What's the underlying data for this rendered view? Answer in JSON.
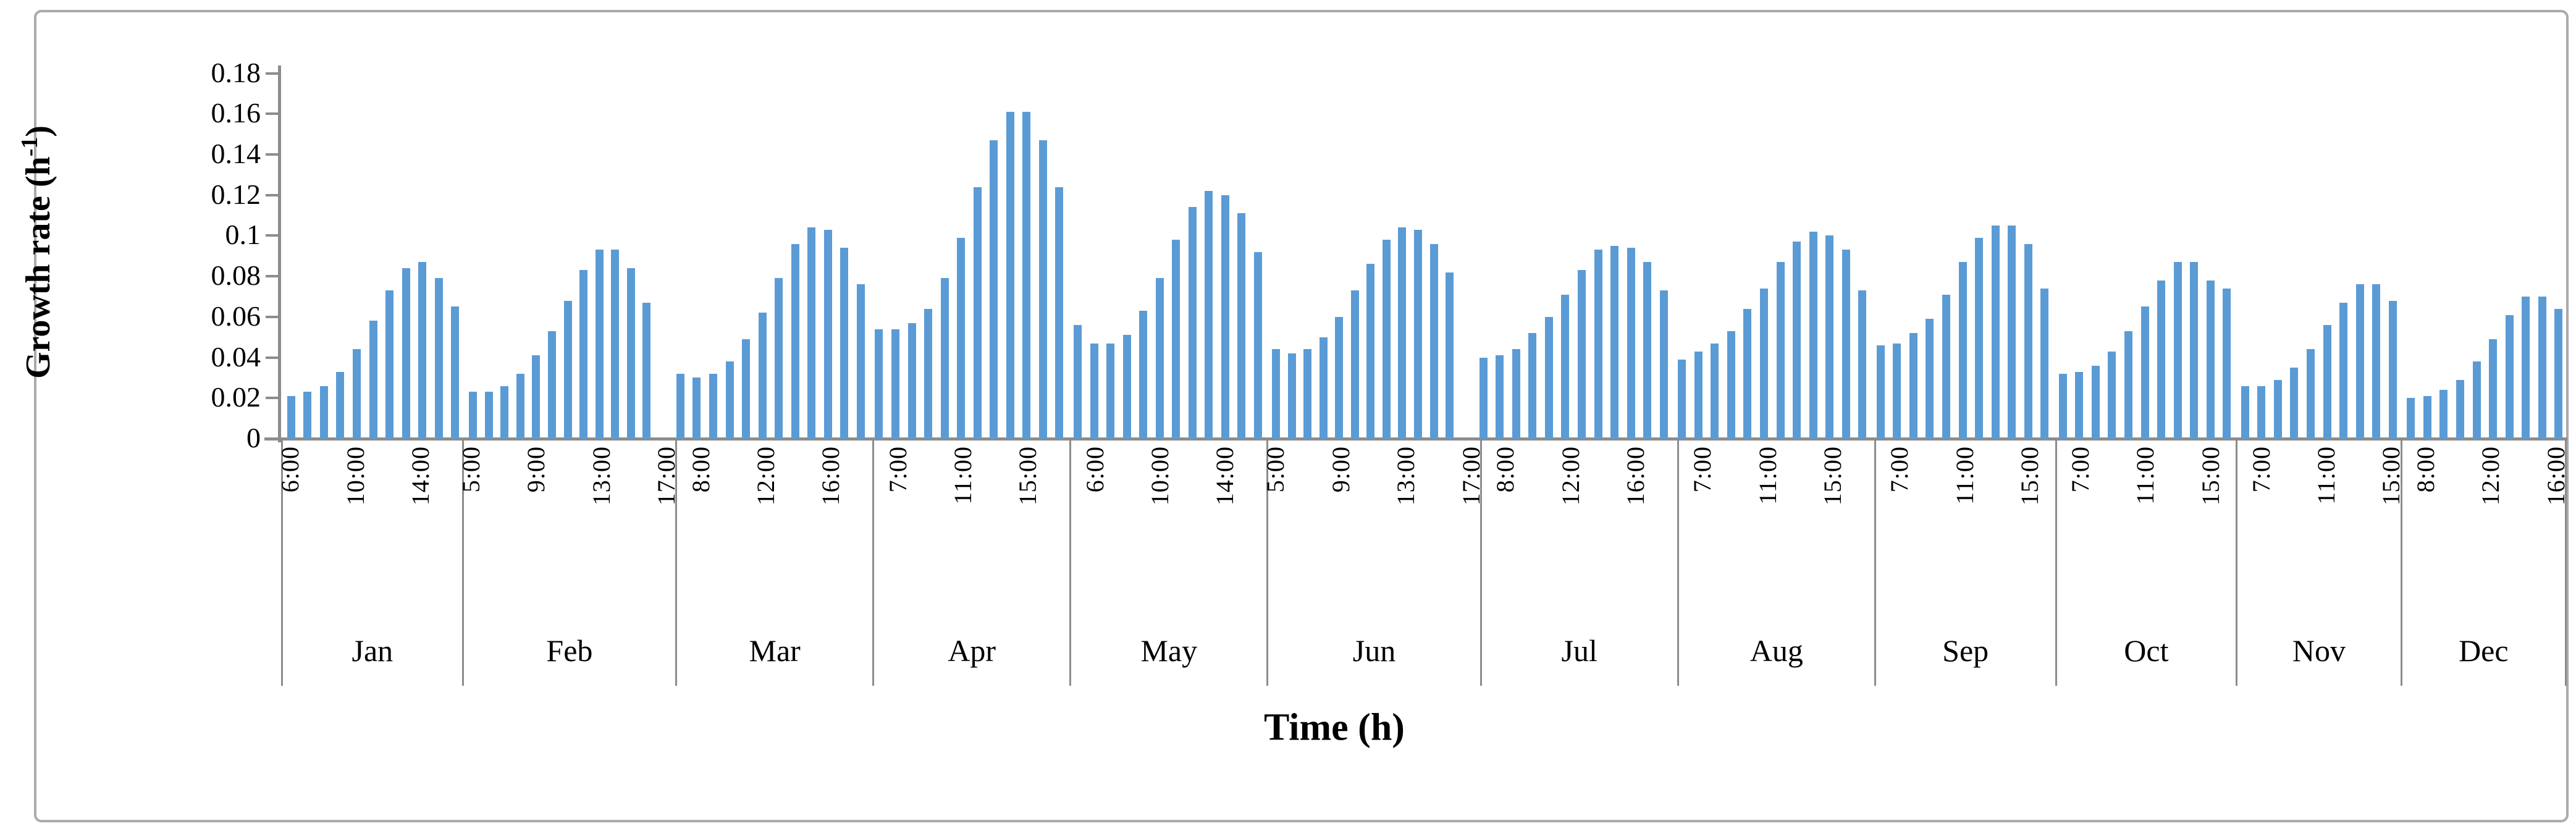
{
  "figure": {
    "bar_color": "#5B9BD5",
    "axis_color": "#8C8C8C",
    "frame_color": "#ABABAB",
    "background": "#ffffff"
  },
  "chart_data": {
    "type": "bar",
    "title": "",
    "xlabel": "Time (h)",
    "ylabel": "Growth rate (h⁻¹)",
    "ylabel_parts": {
      "prefix": "Growth rate (h",
      "sup": "-1",
      "suffix": ")"
    },
    "ylim": [
      0,
      0.18
    ],
    "grid": false,
    "legend": "none",
    "yticks": [
      {
        "label": "0.18",
        "value": 0.18
      },
      {
        "label": "0.16",
        "value": 0.16
      },
      {
        "label": "0.14",
        "value": 0.14
      },
      {
        "label": "0.12",
        "value": 0.12
      },
      {
        "label": "0.1",
        "value": 0.1
      },
      {
        "label": "0.08",
        "value": 0.08
      },
      {
        "label": "0.06",
        "value": 0.06
      },
      {
        "label": "0.04",
        "value": 0.04
      },
      {
        "label": "0.02",
        "value": 0.02
      },
      {
        "label": "0",
        "value": 0
      }
    ],
    "months": [
      {
        "name": "Jan",
        "slots": 11,
        "hour_labels": [
          {
            "text": "6:00",
            "slot": 0
          },
          {
            "text": "10:00",
            "slot": 4
          },
          {
            "text": "14:00",
            "slot": 8
          }
        ],
        "values": [
          0.021,
          0.023,
          0.026,
          0.033,
          0.044,
          0.058,
          0.073,
          0.084,
          0.087,
          0.079,
          0.065
        ]
      },
      {
        "name": "Feb",
        "slots": 13,
        "hour_labels": [
          {
            "text": "5:00",
            "slot": 0
          },
          {
            "text": "9:00",
            "slot": 4
          },
          {
            "text": "13:00",
            "slot": 8
          },
          {
            "text": "17:00",
            "slot": 12
          }
        ],
        "values": [
          0.023,
          0.023,
          0.026,
          0.032,
          0.041,
          0.053,
          0.068,
          0.083,
          0.093,
          0.093,
          0.084,
          0.067,
          null
        ]
      },
      {
        "name": "Mar",
        "slots": 12,
        "hour_labels": [
          {
            "text": "8:00",
            "slot": 1
          },
          {
            "text": "12:00",
            "slot": 5
          },
          {
            "text": "16:00",
            "slot": 9
          }
        ],
        "values": [
          0.032,
          0.03,
          0.032,
          0.038,
          0.049,
          0.062,
          0.079,
          0.096,
          0.104,
          0.103,
          0.094,
          0.076
        ]
      },
      {
        "name": "Apr",
        "slots": 12,
        "hour_labels": [
          {
            "text": "7:00",
            "slot": 1
          },
          {
            "text": "11:00",
            "slot": 5
          },
          {
            "text": "15:00",
            "slot": 9
          }
        ],
        "values": [
          0.054,
          0.054,
          0.057,
          0.064,
          0.079,
          0.099,
          0.124,
          0.147,
          0.161,
          0.161,
          0.147,
          0.124
        ]
      },
      {
        "name": "May",
        "slots": 12,
        "hour_labels": [
          {
            "text": "6:00",
            "slot": 1
          },
          {
            "text": "10:00",
            "slot": 5
          },
          {
            "text": "14:00",
            "slot": 9
          }
        ],
        "values": [
          0.056,
          0.047,
          0.047,
          0.051,
          0.063,
          0.079,
          0.098,
          0.114,
          0.122,
          0.12,
          0.111,
          0.092
        ]
      },
      {
        "name": "Jun",
        "slots": 13,
        "hour_labels": [
          {
            "text": "5:00",
            "slot": 0
          },
          {
            "text": "9:00",
            "slot": 4
          },
          {
            "text": "13:00",
            "slot": 8
          },
          {
            "text": "17:00",
            "slot": 12
          }
        ],
        "values": [
          0.044,
          0.042,
          0.044,
          0.05,
          0.06,
          0.073,
          0.086,
          0.098,
          0.104,
          0.103,
          0.096,
          0.082,
          null
        ]
      },
      {
        "name": "Jul",
        "slots": 12,
        "hour_labels": [
          {
            "text": "8:00",
            "slot": 1
          },
          {
            "text": "12:00",
            "slot": 5
          },
          {
            "text": "16:00",
            "slot": 9
          }
        ],
        "values": [
          0.04,
          0.041,
          0.044,
          0.052,
          0.06,
          0.071,
          0.083,
          0.093,
          0.095,
          0.094,
          0.087,
          0.073
        ]
      },
      {
        "name": "Aug",
        "slots": 12,
        "hour_labels": [
          {
            "text": "7:00",
            "slot": 1
          },
          {
            "text": "11:00",
            "slot": 5
          },
          {
            "text": "15:00",
            "slot": 9
          }
        ],
        "values": [
          0.039,
          0.043,
          0.047,
          0.053,
          0.064,
          0.074,
          0.087,
          0.097,
          0.102,
          0.1,
          0.093,
          0.073
        ]
      },
      {
        "name": "Sep",
        "slots": 11,
        "hour_labels": [
          {
            "text": "7:00",
            "slot": 1
          },
          {
            "text": "11:00",
            "slot": 5
          },
          {
            "text": "15:00",
            "slot": 9
          }
        ],
        "values": [
          0.046,
          0.047,
          0.052,
          0.059,
          0.071,
          0.087,
          0.099,
          0.105,
          0.105,
          0.096,
          0.074
        ]
      },
      {
        "name": "Oct",
        "slots": 11,
        "hour_labels": [
          {
            "text": "7:00",
            "slot": 1
          },
          {
            "text": "11:00",
            "slot": 5
          },
          {
            "text": "15:00",
            "slot": 9
          }
        ],
        "values": [
          0.032,
          0.033,
          0.036,
          0.043,
          0.053,
          0.065,
          0.078,
          0.087,
          0.087,
          0.078,
          0.074
        ]
      },
      {
        "name": "Nov",
        "slots": 10,
        "hour_labels": [
          {
            "text": "7:00",
            "slot": 1
          },
          {
            "text": "11:00",
            "slot": 5
          },
          {
            "text": "15:00",
            "slot": 9
          }
        ],
        "values": [
          0.026,
          0.026,
          0.029,
          0.035,
          0.044,
          0.056,
          0.067,
          0.076,
          0.076,
          0.068
        ]
      },
      {
        "name": "Dec",
        "slots": 10,
        "hour_labels": [
          {
            "text": "8:00",
            "slot": 1
          },
          {
            "text": "12:00",
            "slot": 5
          },
          {
            "text": "16:00",
            "slot": 9
          }
        ],
        "values": [
          0.02,
          0.021,
          0.024,
          0.029,
          0.038,
          0.049,
          0.061,
          0.07,
          0.07,
          0.064
        ]
      }
    ]
  }
}
